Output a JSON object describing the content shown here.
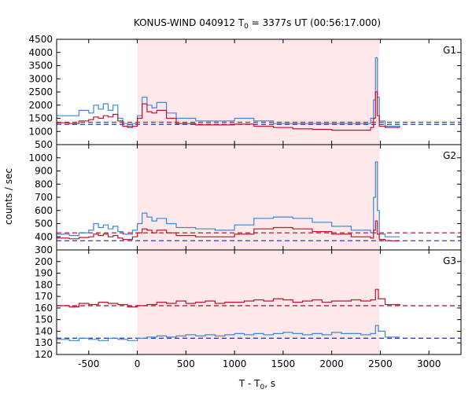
{
  "chart_data": {
    "type": "line",
    "title": "KONUS-WIND 040912 T",
    "title_sub": "0",
    "title_rest": " = 3377s UT (00:56:17.000)",
    "xlabel": "T - T",
    "xlabel_sub": "0",
    "xlabel_rest": ", s",
    "ylabel": "counts / sec",
    "xlim": [
      -830,
      3330
    ],
    "xticks": [
      -500,
      0,
      500,
      1000,
      1500,
      2000,
      2500,
      3000
    ],
    "xtick_labels": [
      "-500",
      "0",
      "500",
      "1000",
      "1500",
      "2000",
      "2500",
      "3000"
    ],
    "shaded_interval": [
      0,
      2490
    ],
    "colors": {
      "blue": "#3a87e0",
      "red": "#c8102e",
      "light_blue": "#7fd3f5",
      "pink": "#ff9cc0",
      "shade": "#ffe8ea",
      "bg_dashed_red": "#b0203a",
      "bg_dashed_blue": "#2e40b8"
    },
    "panels": [
      {
        "label": "G1",
        "ylim": [
          500,
          4500
        ],
        "yticks": [
          500,
          1000,
          1500,
          2000,
          2500,
          3000,
          3500,
          4000,
          4500
        ],
        "ytick_labels": [
          "500",
          "1000",
          "1500",
          "2000",
          "2500",
          "3000",
          "3500",
          "4000",
          "4500"
        ],
        "background_levels": [
          {
            "name": "",
            "value": 1350
          },
          {
            "name": "",
            "value": 1270
          }
        ],
        "series": [
          {
            "name": "",
            "color": "blue",
            "x": [
              -830,
              -700,
              -600,
              -500,
              -450,
              -400,
              -350,
              -300,
              -250,
              -200,
              -150,
              -100,
              -50,
              0,
              50,
              100,
              150,
              200,
              300,
              400,
              600,
              800,
              1000,
              1200,
              1400,
              1600,
              1800,
              2000,
              2200,
              2400,
              2430,
              2450,
              2470,
              2490,
              2550,
              2700
            ],
            "y": [
              1600,
              1600,
              1800,
              1700,
              2000,
              1850,
              2050,
              1800,
              2000,
              1500,
              1300,
              1200,
              1300,
              1600,
              2300,
              2000,
              1900,
              2100,
              1700,
              1500,
              1400,
              1400,
              1500,
              1400,
              1300,
              1300,
              1300,
              1300,
              1300,
              1500,
              2200,
              3800,
              2300,
              1400,
              1200,
              1150
            ]
          },
          {
            "name": "",
            "color": "red",
            "x": [
              -830,
              -700,
              -600,
              -500,
              -450,
              -400,
              -350,
              -300,
              -250,
              -200,
              -150,
              -100,
              -50,
              0,
              50,
              100,
              150,
              200,
              300,
              400,
              600,
              800,
              1000,
              1200,
              1400,
              1600,
              1800,
              2000,
              2200,
              2400,
              2430,
              2450,
              2470,
              2490,
              2550,
              2700
            ],
            "y": [
              1330,
              1300,
              1400,
              1450,
              1550,
              1500,
              1600,
              1550,
              1650,
              1400,
              1200,
              1150,
              1200,
              1500,
              2050,
              1750,
              1700,
              1800,
              1500,
              1300,
              1250,
              1250,
              1280,
              1200,
              1150,
              1100,
              1080,
              1050,
              1050,
              1150,
              1500,
              2500,
              1600,
              1200,
              1150,
              1150
            ]
          }
        ]
      },
      {
        "label": "G2",
        "ylim": [
          300,
          1100
        ],
        "yticks": [
          300,
          400,
          500,
          600,
          700,
          800,
          900,
          1000
        ],
        "ytick_labels": [
          "300",
          "400",
          "500",
          "600",
          "700",
          "800",
          "900",
          "1000"
        ],
        "background_levels": [
          {
            "name": "",
            "value": 430
          },
          {
            "name": "",
            "value": 370
          }
        ],
        "series": [
          {
            "name": "",
            "color": "blue",
            "x": [
              -830,
              -700,
              -600,
              -500,
              -450,
              -400,
              -350,
              -300,
              -250,
              -200,
              -150,
              -100,
              -50,
              0,
              50,
              100,
              150,
              200,
              300,
              400,
              600,
              800,
              1000,
              1200,
              1400,
              1600,
              1800,
              2000,
              2200,
              2400,
              2430,
              2450,
              2470,
              2490,
              2550,
              2700
            ],
            "y": [
              420,
              410,
              430,
              450,
              500,
              470,
              490,
              460,
              480,
              440,
              420,
              420,
              450,
              500,
              580,
              550,
              520,
              540,
              500,
              470,
              460,
              450,
              490,
              540,
              550,
              540,
              510,
              480,
              450,
              430,
              700,
              970,
              600,
              420,
              400,
              400
            ]
          },
          {
            "name": "",
            "color": "red",
            "x": [
              -830,
              -700,
              -600,
              -500,
              -450,
              -400,
              -350,
              -300,
              -250,
              -200,
              -150,
              -100,
              -50,
              0,
              50,
              100,
              150,
              200,
              300,
              400,
              600,
              800,
              1000,
              1200,
              1400,
              1600,
              1800,
              2000,
              2200,
              2400,
              2430,
              2450,
              2470,
              2490,
              2550,
              2700
            ],
            "y": [
              390,
              385,
              395,
              400,
              420,
              410,
              420,
              400,
              410,
              390,
              380,
              380,
              400,
              430,
              460,
              450,
              430,
              450,
              430,
              410,
              400,
              400,
              420,
              460,
              470,
              460,
              440,
              420,
              400,
              390,
              450,
              520,
              420,
              380,
              370,
              370
            ]
          }
        ]
      },
      {
        "label": "G3",
        "ylim": [
          120,
          210
        ],
        "yticks": [
          120,
          130,
          140,
          150,
          160,
          170,
          180,
          190,
          200
        ],
        "ytick_labels": [
          "120",
          "130",
          "140",
          "150",
          "160",
          "170",
          "180",
          "190",
          "200"
        ],
        "background_levels": [
          {
            "name": "",
            "value": 162
          },
          {
            "name": "",
            "value": 134
          }
        ],
        "series": [
          {
            "name": "",
            "color": "red",
            "x": [
              -830,
              -700,
              -600,
              -500,
              -400,
              -300,
              -200,
              -100,
              0,
              100,
              200,
              300,
              400,
              500,
              600,
              700,
              800,
              900,
              1000,
              1100,
              1200,
              1300,
              1400,
              1500,
              1600,
              1700,
              1800,
              1900,
              2000,
              2100,
              2200,
              2300,
              2400,
              2450,
              2480,
              2550,
              2700
            ],
            "y": [
              162,
              161,
              164,
              163,
              165,
              164,
              163,
              161,
              162,
              163,
              165,
              164,
              166,
              164,
              165,
              166,
              164,
              165,
              165,
              166,
              167,
              166,
              168,
              167,
              165,
              166,
              167,
              165,
              166,
              166,
              167,
              166,
              167,
              176,
              168,
              163,
              162
            ]
          },
          {
            "name": "",
            "color": "blue",
            "x": [
              -830,
              -700,
              -600,
              -500,
              -400,
              -300,
              -200,
              -100,
              0,
              100,
              200,
              300,
              400,
              500,
              600,
              700,
              800,
              900,
              1000,
              1100,
              1200,
              1300,
              1400,
              1500,
              1600,
              1700,
              1800,
              1900,
              2000,
              2100,
              2200,
              2300,
              2400,
              2450,
              2480,
              2550,
              2700
            ],
            "y": [
              133,
              132,
              134,
              133,
              132,
              134,
              133,
              132,
              134,
              135,
              136,
              135,
              136,
              137,
              136,
              137,
              136,
              137,
              138,
              137,
              138,
              137,
              138,
              139,
              138,
              137,
              138,
              137,
              139,
              138,
              138,
              137,
              138,
              145,
              140,
              135,
              135
            ]
          }
        ]
      }
    ]
  }
}
